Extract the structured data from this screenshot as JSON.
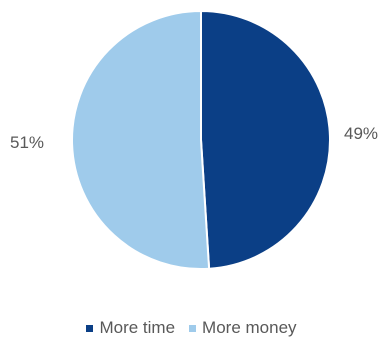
{
  "chart_data": {
    "type": "pie",
    "categories": [
      "More time",
      "More money"
    ],
    "values": [
      49,
      51
    ],
    "labels": [
      "49%",
      "51%"
    ],
    "colors": [
      "#0b3f86",
      "#9fcbeb"
    ],
    "legend_position": "bottom",
    "title": ""
  }
}
